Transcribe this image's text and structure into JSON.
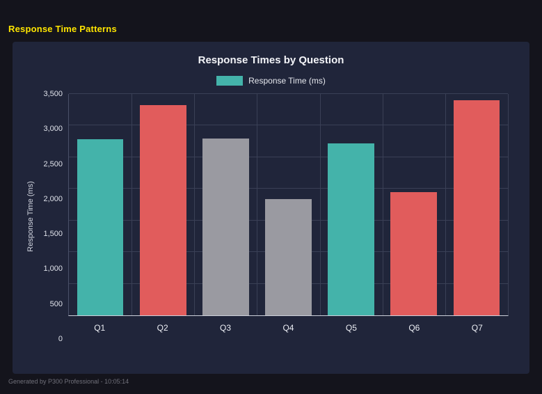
{
  "page": {
    "title": "Response Time Patterns",
    "footer": "Generated by P300 Professional - 10:05:14"
  },
  "colors": {
    "background": "#14141c",
    "panel": "#20253a",
    "accent_yellow": "#ffe500",
    "teal": "#44b3aa",
    "red": "#e15c5c",
    "gray": "#9a9aa1",
    "gridline": "#3a4056"
  },
  "chart_data": {
    "type": "bar",
    "title": "Response Times by Question",
    "legend": [
      {
        "label": "Response Time (ms)",
        "color": "#44b3aa"
      }
    ],
    "legend_position": "top",
    "categories": [
      "Q1",
      "Q2",
      "Q3",
      "Q4",
      "Q5",
      "Q6",
      "Q7"
    ],
    "values": [
      2790,
      3320,
      2800,
      1840,
      2720,
      1950,
      3400
    ],
    "bar_colors": [
      "#44b3aa",
      "#e15c5c",
      "#9a9aa1",
      "#9a9aa1",
      "#44b3aa",
      "#e15c5c",
      "#e15c5c"
    ],
    "xlabel": "",
    "ylabel": "Response Time (ms)",
    "ylim": [
      0,
      3500
    ],
    "yticks": [
      0,
      500,
      1000,
      1500,
      2000,
      2500,
      3000,
      3500
    ],
    "ytick_labels": [
      "0",
      "500",
      "1,000",
      "1,500",
      "2,000",
      "2,500",
      "3,000",
      "3,500"
    ],
    "grid": true
  }
}
